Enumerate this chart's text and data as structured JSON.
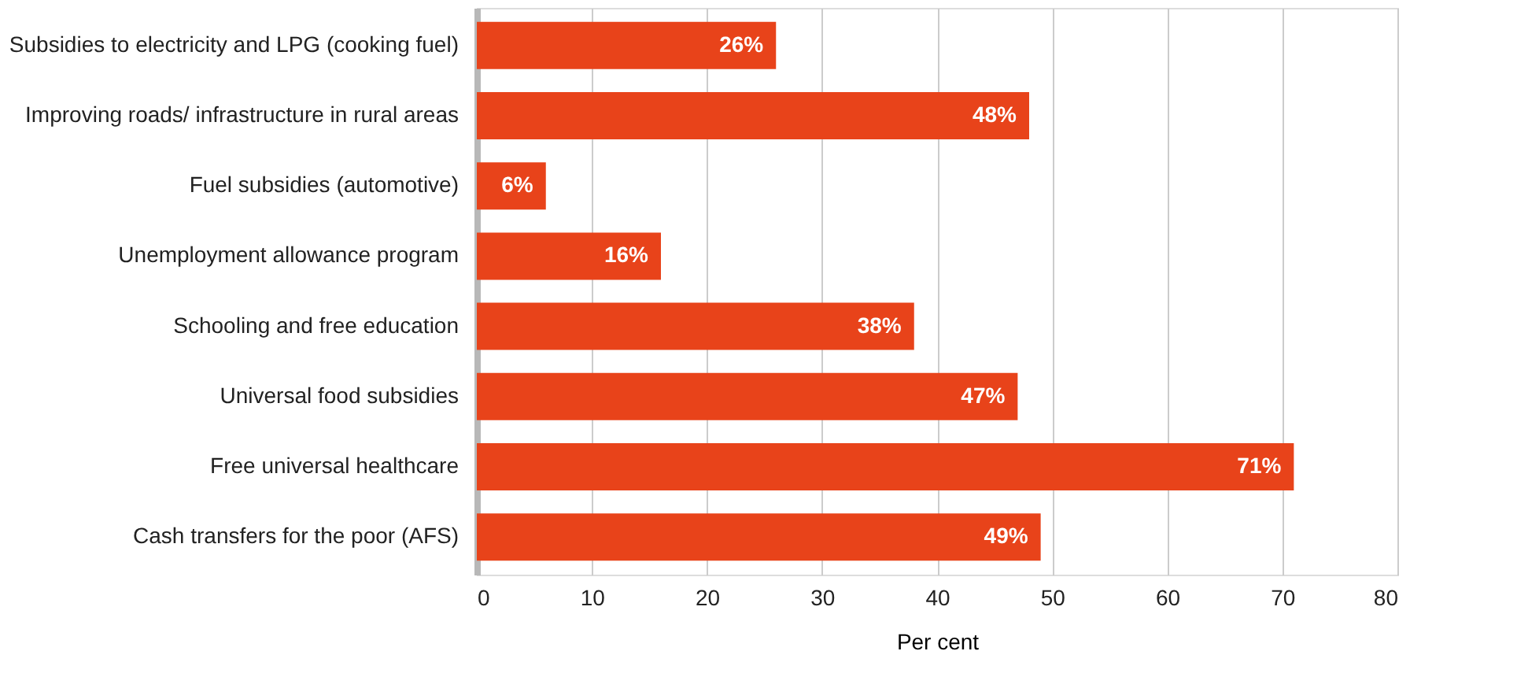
{
  "chart_data": {
    "type": "bar",
    "orientation": "horizontal",
    "xlabel": "Per cent",
    "categories": [
      "Subsidies to electricity and LPG (cooking fuel)",
      "Improving roads/ infrastructure in rural areas",
      "Fuel subsidies (automotive)",
      "Unemployment allowance program",
      "Schooling and free education",
      "Universal food subsidies",
      "Free universal healthcare",
      "Cash transfers for the poor (AFS)"
    ],
    "values": [
      26,
      48,
      6,
      16,
      38,
      47,
      71,
      49
    ],
    "value_labels": [
      "26%",
      "48%",
      "6%",
      "16%",
      "38%",
      "47%",
      "71%",
      "49%"
    ],
    "color": "#e8431a",
    "xlim": [
      0,
      80
    ],
    "xticks": [
      0,
      10,
      20,
      30,
      40,
      50,
      60,
      70,
      80
    ],
    "grid": "x"
  }
}
